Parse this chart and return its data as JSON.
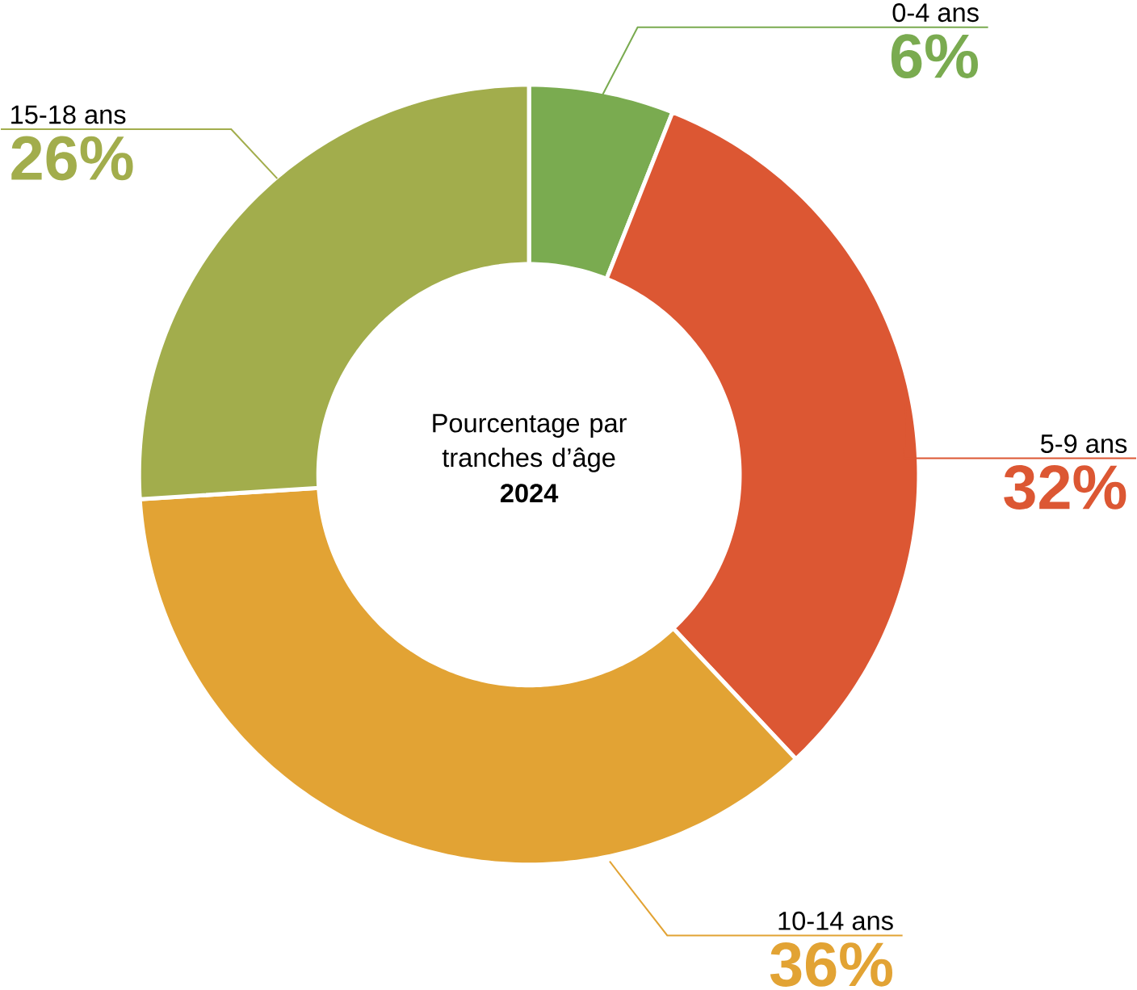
{
  "chart_data": {
    "type": "donut",
    "title": "Pourcentage par tranches d’âge",
    "subtitle": "2024",
    "categories": [
      "0-4 ans",
      "5-9 ans",
      "10-14 ans",
      "15-18 ans"
    ],
    "values": [
      6,
      32,
      36,
      26
    ],
    "colors": [
      "#7aab50",
      "#dc5733",
      "#e2a334",
      "#a2ad4c"
    ],
    "value_labels": [
      "6%",
      "32%",
      "36%",
      "26%"
    ]
  }
}
